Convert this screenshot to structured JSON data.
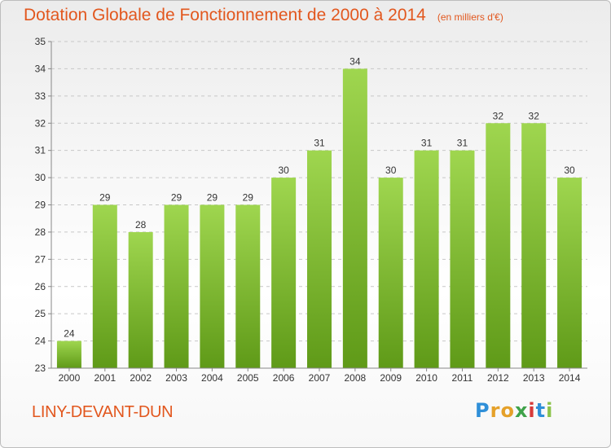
{
  "title": "Dotation Globale de Fonctionnement de 2000 à 2014",
  "subtitle": "(en milliers d'€)",
  "commune": "LINY-DEVANT-DUN",
  "logo": [
    "P",
    "r",
    "o",
    "x",
    "i",
    "t",
    "i"
  ],
  "colors": {
    "title": "#e2571e",
    "bar_top": "#9fd64f",
    "bar_bottom": "#5f9a18",
    "grid": "#c7c7c7"
  },
  "chart_data": {
    "type": "bar",
    "categories": [
      "2000",
      "2001",
      "2002",
      "2003",
      "2004",
      "2005",
      "2006",
      "2007",
      "2008",
      "2009",
      "2010",
      "2011",
      "2012",
      "2013",
      "2014"
    ],
    "values": [
      24,
      29,
      28,
      29,
      29,
      29,
      30,
      31,
      34,
      30,
      31,
      31,
      32,
      32,
      30
    ],
    "data_labels": [
      "24",
      "29",
      "28",
      "29",
      "29",
      "29",
      "30",
      "31",
      "34",
      "30",
      "31",
      "31",
      "32",
      "32",
      "30"
    ],
    "ylim": [
      23,
      35
    ],
    "yticks": [
      "23",
      "24",
      "25",
      "26",
      "27",
      "28",
      "29",
      "30",
      "31",
      "32",
      "33",
      "34",
      "35"
    ],
    "grid": true,
    "xlabel": "",
    "ylabel": ""
  }
}
